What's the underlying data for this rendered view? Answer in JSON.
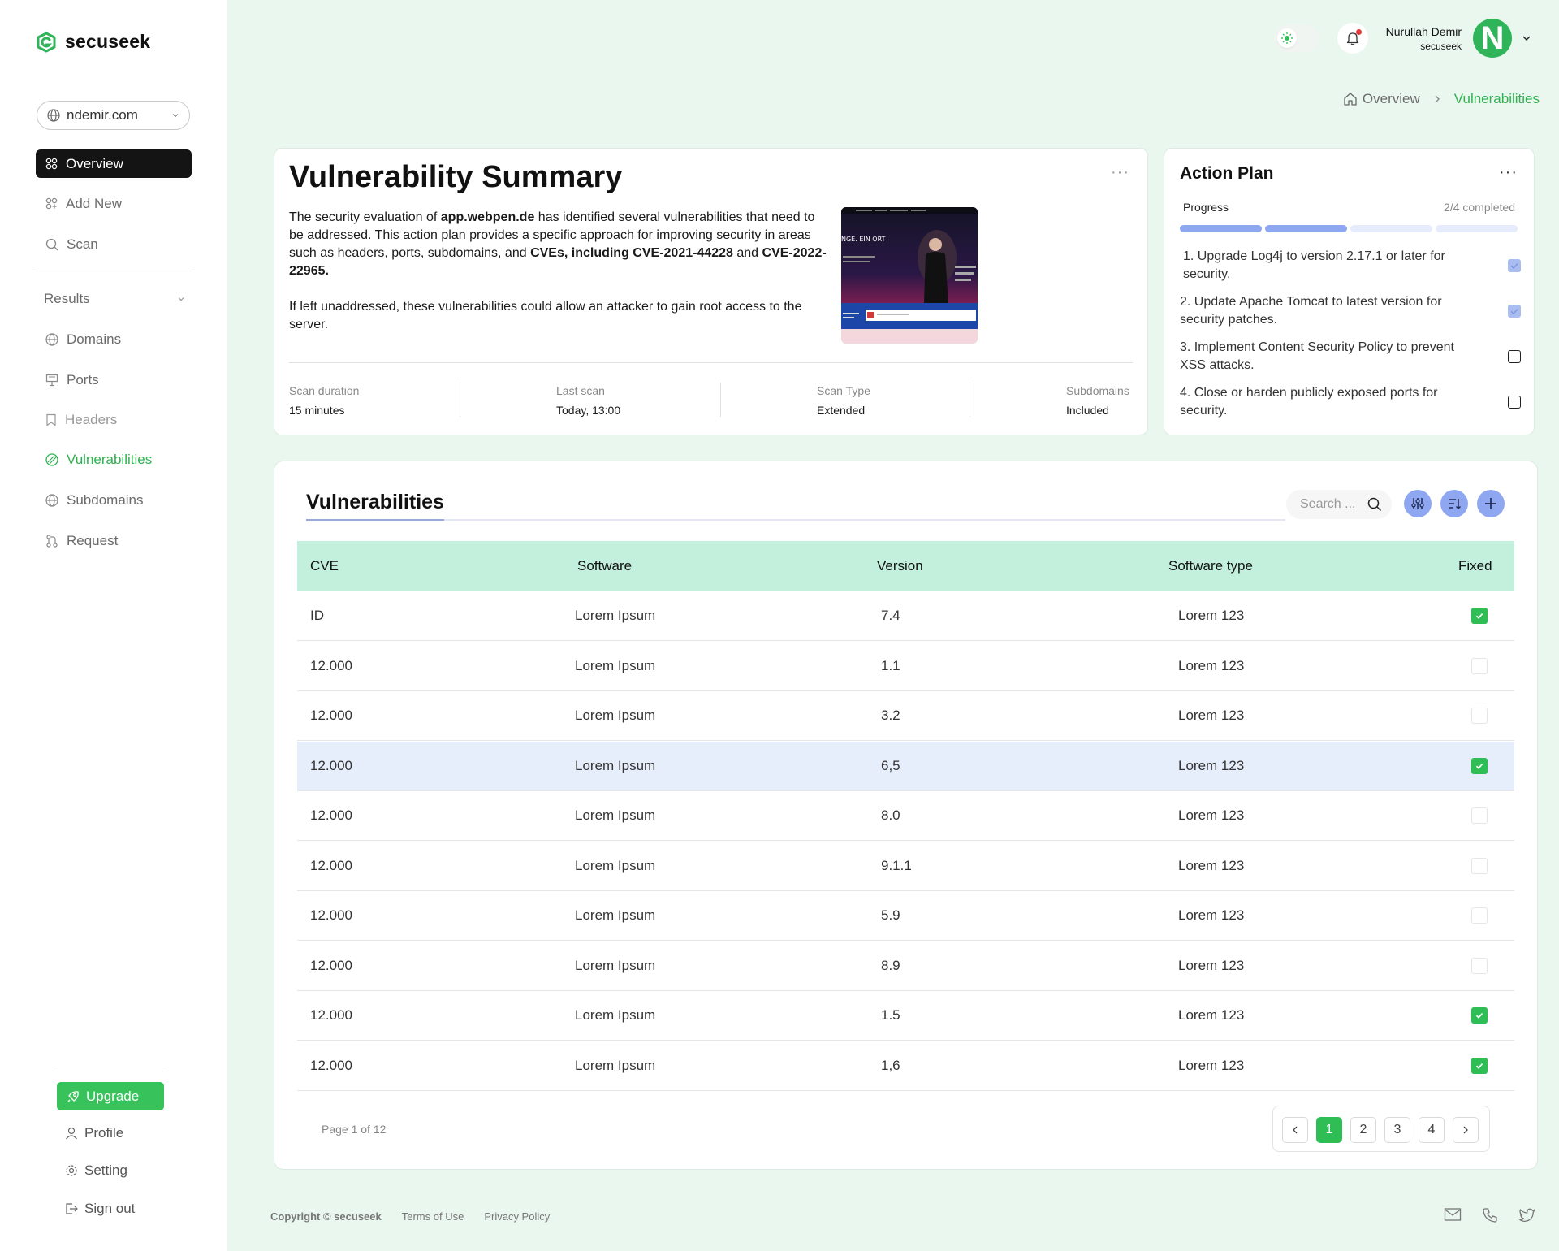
{
  "app": {
    "name": "secuseek"
  },
  "sidebar": {
    "domain": "ndemir.com",
    "nav": [
      {
        "label": "Overview",
        "icon": "grid-icon"
      },
      {
        "label": "Add New",
        "icon": "grid-plus-icon"
      },
      {
        "label": "Scan",
        "icon": "search-icon"
      }
    ],
    "results_label": "Results",
    "results": [
      {
        "label": "Domains",
        "icon": "globe-icon"
      },
      {
        "label": "Ports",
        "icon": "port-icon"
      },
      {
        "label": "Headers",
        "icon": "bookmark-icon"
      },
      {
        "label": "Vulnerabilities",
        "icon": "shield-icon"
      },
      {
        "label": "Subdomains",
        "icon": "globe-icon"
      },
      {
        "label": "Request",
        "icon": "git-pull-icon"
      }
    ],
    "upgrade_label": "Upgrade",
    "profile_label": "Profile",
    "setting_label": "Setting",
    "signout_label": "Sign out"
  },
  "header": {
    "user_name": "Nurullah Demir",
    "user_company": "secuseek",
    "avatar_letter": "N"
  },
  "breadcrumb": {
    "home": "Overview",
    "current": "Vulnerabilities"
  },
  "summary": {
    "title": "Vulnerability Summary",
    "more": "···",
    "p1_a": "The security evaluation of ",
    "p1_domain": "app.webpen.de",
    "p1_b": " has identified several vulnerabilities that need to be addressed. This action plan provides a specific approach for improving security in areas such as headers, ports, subdomains, and ",
    "p1_cves": "CVEs, including CVE-2021-44228",
    "p1_c": " and ",
    "p1_cve2": "CVE-2022-22965.",
    "p2": "If left unaddressed, these vulnerabilities could allow an attacker to gain root access to the server.",
    "thumb_caption": "NGE. EIN ORT",
    "stats": [
      {
        "label": "Scan duration",
        "value": "15 minutes"
      },
      {
        "label": "Last scan",
        "value": "Today, 13:00"
      },
      {
        "label": "Scan Type",
        "value": "Extended"
      },
      {
        "label": "Subdomains",
        "value": "Included"
      }
    ]
  },
  "action_plan": {
    "title": "Action Plan",
    "more": "···",
    "progress_label": "Progress",
    "progress_text": "2/4 completed",
    "progress_done": 2,
    "progress_total": 4,
    "items": [
      {
        "text": "1. Upgrade Log4j to version 2.17.1 or later for security.",
        "done": true
      },
      {
        "text": "2. Update Apache Tomcat to latest version for security patches.",
        "done": true
      },
      {
        "text": "3. Implement Content Security Policy to prevent XSS attacks.",
        "done": false
      },
      {
        "text": "4. Close or harden publicly exposed ports for security.",
        "done": false
      }
    ]
  },
  "vulnerabilities": {
    "title": "Vulnerabilities",
    "search_placeholder": "Search ...",
    "columns": [
      "CVE",
      "Software",
      "Version",
      "Software type",
      "Fixed"
    ],
    "rows": [
      {
        "cve": "ID",
        "software": "Lorem Ipsum",
        "version": "7.4",
        "type": "Lorem 123",
        "fixed": true
      },
      {
        "cve": "12.000",
        "software": "Lorem Ipsum",
        "version": "1.1",
        "type": "Lorem 123",
        "fixed": false
      },
      {
        "cve": "12.000",
        "software": "Lorem Ipsum",
        "version": "3.2",
        "type": "Lorem 123",
        "fixed": false
      },
      {
        "cve": "12.000",
        "software": "Lorem Ipsum",
        "version": "6,5",
        "type": "Lorem 123",
        "fixed": true
      },
      {
        "cve": "12.000",
        "software": "Lorem Ipsum",
        "version": "8.0",
        "type": "Lorem 123",
        "fixed": false
      },
      {
        "cve": "12.000",
        "software": "Lorem Ipsum",
        "version": "9.1.1",
        "type": "Lorem 123",
        "fixed": false
      },
      {
        "cve": "12.000",
        "software": "Lorem Ipsum",
        "version": "5.9",
        "type": "Lorem 123",
        "fixed": false
      },
      {
        "cve": "12.000",
        "software": "Lorem Ipsum",
        "version": "8.9",
        "type": "Lorem 123",
        "fixed": false
      },
      {
        "cve": "12.000",
        "software": "Lorem Ipsum",
        "version": "1.5",
        "type": "Lorem 123",
        "fixed": true
      },
      {
        "cve": "12.000",
        "software": "Lorem Ipsum",
        "version": "1,6",
        "type": "Lorem 123",
        "fixed": true
      }
    ],
    "page_info": "Page 1 of 12",
    "pages": [
      "1",
      "2",
      "3",
      "4"
    ],
    "current_page": "1"
  },
  "footer": {
    "copyright": "Copyright © secuseek",
    "terms": "Terms of Use",
    "privacy": "Privacy Policy"
  },
  "colors": {
    "accent": "#2eb24f",
    "background": "#eaf7ef",
    "header_row": "#c3f0dc",
    "highlight_row": "#e6edfb",
    "button_blue": "#8fa7f0"
  }
}
